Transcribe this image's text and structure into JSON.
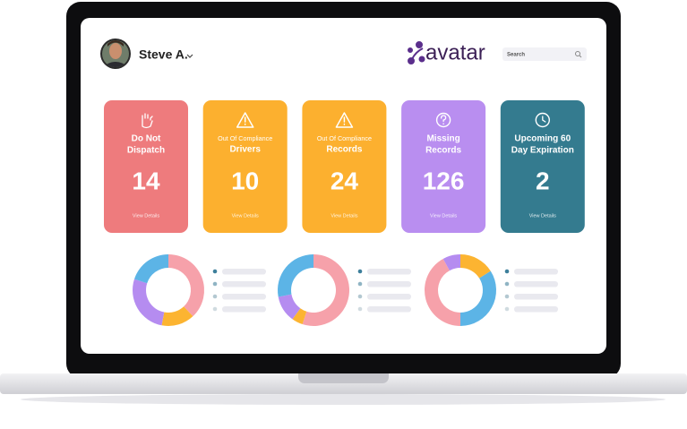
{
  "header": {
    "user_name": "Steve A.",
    "logo": "avatar",
    "search_placeholder": "Search"
  },
  "cards": [
    {
      "title_lines": [
        "Do Not",
        "Dispatch"
      ],
      "value": 14,
      "link": "View Details",
      "color": "#ee7b7d"
    },
    {
      "overline": "Out Of Compliance",
      "title_lines": [
        "Drivers"
      ],
      "value": 10,
      "link": "View Details",
      "color": "#fcb02f"
    },
    {
      "overline": "Out Of Compliance",
      "title_lines": [
        "Records"
      ],
      "value": 24,
      "link": "View Details",
      "color": "#fcb02f"
    },
    {
      "title_lines": [
        "Missing",
        "Records"
      ],
      "value": 126,
      "link": "View Details",
      "color": "#b98ef0"
    },
    {
      "title_lines": [
        "Upcoming 60",
        "Day Expiration"
      ],
      "value": 2,
      "link": "View Details",
      "color": "#347b8f"
    }
  ],
  "charts": [
    {
      "segments": [
        {
          "value": 38,
          "color": "#f6a1aa"
        },
        {
          "value": 15,
          "color": "#fcb431"
        },
        {
          "value": 27,
          "color": "#b58cf0"
        },
        {
          "value": 20,
          "color": "#5cb4e6"
        }
      ]
    },
    {
      "segments": [
        {
          "value": 55,
          "color": "#f6a1aa"
        },
        {
          "value": 5,
          "color": "#fcb431"
        },
        {
          "value": 12,
          "color": "#b58cf0"
        },
        {
          "value": 28,
          "color": "#5cb4e6"
        }
      ]
    },
    {
      "segments": [
        {
          "value": 16,
          "color": "#fcb431"
        },
        {
          "value": 34,
          "color": "#5cb4e6"
        },
        {
          "value": 42,
          "color": "#f6a1aa"
        },
        {
          "value": 8,
          "color": "#b58cf0"
        }
      ]
    }
  ]
}
